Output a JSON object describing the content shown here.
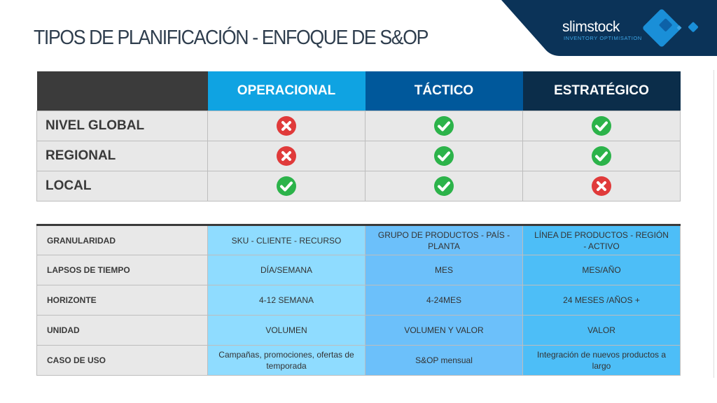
{
  "title": "TIPOS DE PLANIFICACIÓN - ENFOQUE DE S&OP",
  "logo": {
    "name": "slimstock",
    "tagline": "INVENTORY OPTIMISATION"
  },
  "colors": {
    "banner": "#0b3358",
    "operacional": "#0fa3e2",
    "tactico": "#00589b",
    "estrategico": "#0b2d4a",
    "check": "#2cb34a",
    "cross": "#e03a3a"
  },
  "columns": [
    "OPERACIONAL",
    "TÁCTICO",
    "ESTRATÉGICO"
  ],
  "levels": [
    {
      "label": "NIVEL GLOBAL",
      "values": [
        "cross",
        "check",
        "check"
      ]
    },
    {
      "label": "REGIONAL",
      "values": [
        "cross",
        "check",
        "check"
      ]
    },
    {
      "label": "LOCAL",
      "values": [
        "check",
        "check",
        "cross"
      ]
    }
  ],
  "details": [
    {
      "label": "GRANULARIDAD",
      "values": [
        "SKU - CLIENTE - RECURSO",
        "GRUPO DE PRODUCTOS - PAÍS - PLANTA",
        "LÍNEA DE PRODUCTOS - REGIÓN - ACTIVO"
      ]
    },
    {
      "label": "LAPSOS DE TIEMPO",
      "values": [
        "DÍA/SEMANA",
        "MES",
        "MES/AÑO"
      ]
    },
    {
      "label": "HORIZONTE",
      "values": [
        "4-12 SEMANA",
        "4-24MES",
        "24 MESES /AÑOS +"
      ]
    },
    {
      "label": "UNIDAD",
      "values": [
        "VOLUMEN",
        "VOLUMEN Y VALOR",
        "VALOR"
      ]
    },
    {
      "label": "CASO DE USO",
      "values": [
        "Campañas, promociones, ofertas de temporada",
        "S&OP mensual",
        "Integración de nuevos productos a largo"
      ]
    }
  ]
}
